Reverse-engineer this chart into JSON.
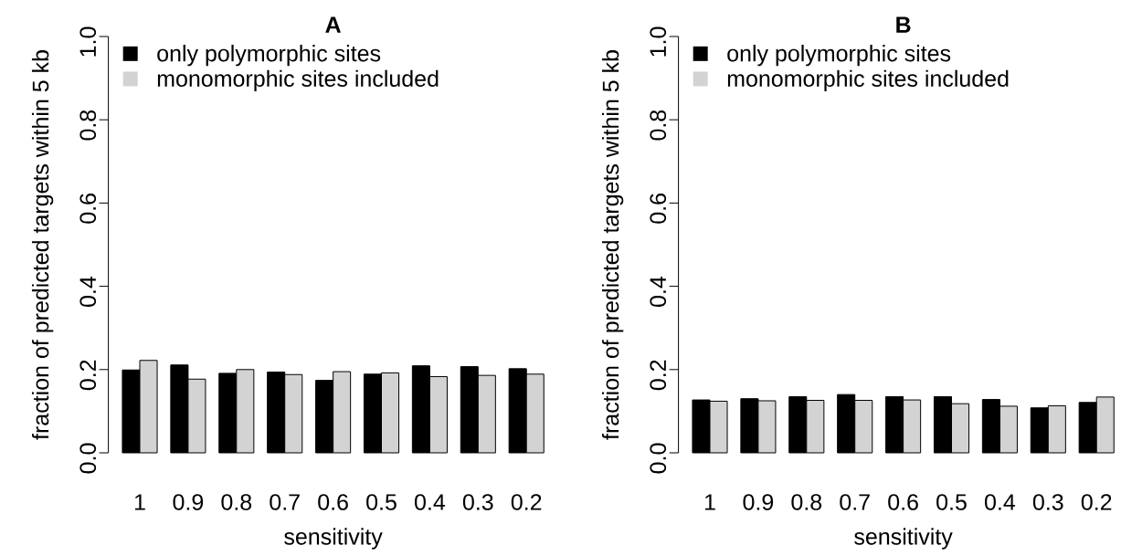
{
  "chart_data": [
    {
      "type": "bar",
      "title": "A",
      "xlabel": "sensitivity",
      "ylabel": "fraction of predicted targets within 5 kb",
      "categories": [
        "1",
        "0.9",
        "0.8",
        "0.7",
        "0.6",
        "0.5",
        "0.4",
        "0.3",
        "0.2"
      ],
      "series": [
        {
          "name": "only polymorphic sites",
          "color": "#000000",
          "values": [
            0.199,
            0.211,
            0.191,
            0.194,
            0.174,
            0.189,
            0.209,
            0.207,
            0.202
          ]
        },
        {
          "name": "monomorphic sites included",
          "color": "#d3d3d3",
          "values": [
            0.222,
            0.177,
            0.2,
            0.188,
            0.195,
            0.192,
            0.183,
            0.186,
            0.189
          ]
        }
      ],
      "ylim": [
        0,
        1
      ],
      "yticks": [
        {
          "value": 0,
          "label": "0.0"
        },
        {
          "value": 0.2,
          "label": "0.2"
        },
        {
          "value": 0.4,
          "label": "0.4"
        },
        {
          "value": 0.6,
          "label": "0.6"
        },
        {
          "value": 0.8,
          "label": "0.8"
        },
        {
          "value": 1,
          "label": "1.0"
        }
      ],
      "legend": "top left"
    },
    {
      "type": "bar",
      "title": "B",
      "xlabel": "sensitivity",
      "ylabel": "fraction of predicted targets within 5 kb",
      "categories": [
        "1",
        "0.9",
        "0.8",
        "0.7",
        "0.6",
        "0.5",
        "0.4",
        "0.3",
        "0.2"
      ],
      "series": [
        {
          "name": "only polymorphic sites",
          "color": "#000000",
          "values": [
            0.127,
            0.13,
            0.135,
            0.14,
            0.135,
            0.135,
            0.128,
            0.108,
            0.121
          ]
        },
        {
          "name": "monomorphic sites included",
          "color": "#d3d3d3",
          "values": [
            0.124,
            0.125,
            0.126,
            0.126,
            0.127,
            0.118,
            0.112,
            0.113,
            0.134
          ]
        }
      ],
      "ylim": [
        0,
        1
      ],
      "yticks": [
        {
          "value": 0,
          "label": "0.0"
        },
        {
          "value": 0.2,
          "label": "0.2"
        },
        {
          "value": 0.4,
          "label": "0.4"
        },
        {
          "value": 0.6,
          "label": "0.6"
        },
        {
          "value": 0.8,
          "label": "0.8"
        },
        {
          "value": 1,
          "label": "1.0"
        }
      ],
      "legend": "top left"
    }
  ]
}
